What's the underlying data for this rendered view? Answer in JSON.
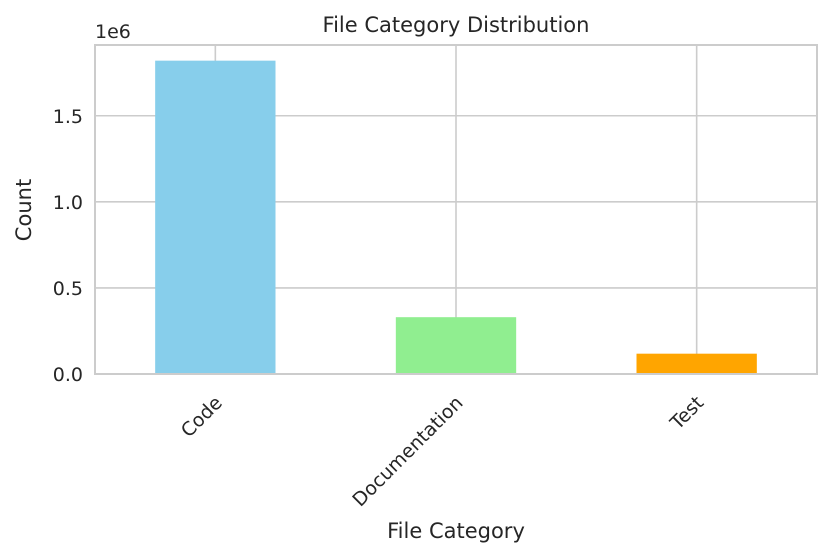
{
  "chart_data": {
    "type": "bar",
    "title": "File Category Distribution",
    "xlabel": "File Category",
    "ylabel": "Count",
    "y_offset_label": "1e6",
    "categories": [
      "Code",
      "Documentation",
      "Test"
    ],
    "values": [
      1820000,
      330000,
      118000
    ],
    "colors": [
      "#87ceeb",
      "#90ee90",
      "#ffa500"
    ],
    "ylim": [
      0,
      1911000
    ],
    "yticks": [
      0,
      500000,
      1000000,
      1500000
    ],
    "ytick_labels": [
      "0.0",
      "0.5",
      "1.0",
      "1.5"
    ],
    "grid": true,
    "xtick_rotation": 45
  }
}
